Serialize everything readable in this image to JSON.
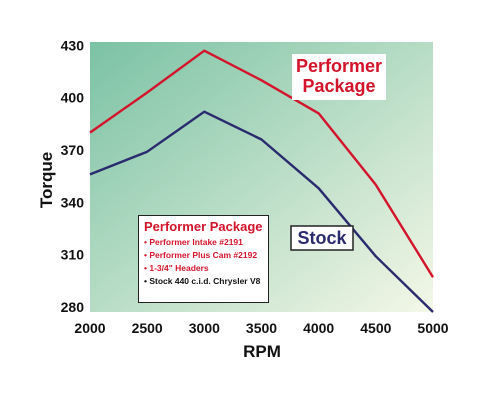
{
  "chart_data": {
    "type": "line",
    "title": "",
    "xlabel": "RPM",
    "ylabel": "Torque",
    "x": [
      2000,
      2500,
      3000,
      3500,
      4000,
      4500,
      5000
    ],
    "xlim": [
      2000,
      5000
    ],
    "ylim": [
      277,
      432
    ],
    "xticks": [
      "2000",
      "2500",
      "3000",
      "3500",
      "4000",
      "4500",
      "5000"
    ],
    "yticks": [
      "280",
      "310",
      "340",
      "370",
      "400",
      "430"
    ],
    "grid": false,
    "background_gradient": [
      "#7bc2a4",
      "#f4f7e7"
    ],
    "series": [
      {
        "name": "Performer Package",
        "label": [
          "Performer",
          "Package"
        ],
        "color": "#d4142b",
        "values": [
          380,
          403,
          427,
          410,
          391,
          350,
          297
        ]
      },
      {
        "name": "Stock",
        "label": [
          "Stock"
        ],
        "color": "#2a2a6e",
        "values": [
          356,
          369,
          392,
          376,
          348,
          309,
          277
        ]
      }
    ],
    "legend": {
      "placement": "bottom-left",
      "title": "Performer Package",
      "items": [
        {
          "text": "• Performer Intake #2191",
          "color": "#d4142b"
        },
        {
          "text": "• Performer Plus Cam #2192",
          "color": "#d4142b"
        },
        {
          "text": "• 1-3/4\" Headers",
          "color": "#d4142b"
        },
        {
          "text": "• Stock 440 c.i.d. Chrysler V8",
          "color": "#111111"
        }
      ]
    }
  }
}
